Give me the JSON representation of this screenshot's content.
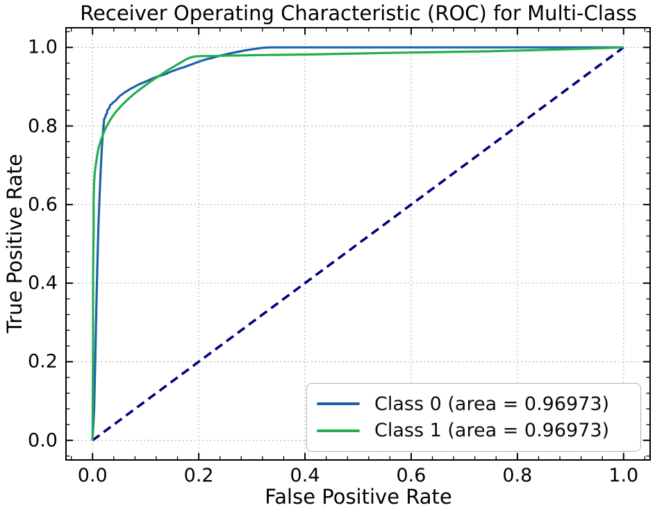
{
  "chart_data": {
    "type": "line",
    "title": "Receiver Operating Characteristic (ROC) for Multi-Class",
    "xlabel": "False Positive Rate",
    "ylabel": "True Positive Rate",
    "xlim": [
      -0.05,
      1.05
    ],
    "ylim": [
      -0.05,
      1.05
    ],
    "x_ticks": [
      0.0,
      0.2,
      0.4,
      0.6,
      0.8,
      1.0
    ],
    "y_ticks": [
      0.0,
      0.2,
      0.4,
      0.6,
      0.8,
      1.0
    ],
    "x_tick_labels": [
      "0.0",
      "0.2",
      "0.4",
      "0.6",
      "0.8",
      "1.0"
    ],
    "y_tick_labels": [
      "0.0",
      "0.2",
      "0.4",
      "0.6",
      "0.8",
      "1.0"
    ],
    "minor_tick_step": 0.04,
    "grid": true,
    "grid_style": "dotted",
    "legend_position": "lower right",
    "colors": {
      "class0": "#1b62ab",
      "class1": "#23ad4f",
      "chance": "#000080",
      "grid": "#b9b9b9",
      "spine": "#000000"
    },
    "series": [
      {
        "name": "Class 0 (area = 0.96973)",
        "auc": 0.96973,
        "color": "#1b62ab",
        "style": "solid",
        "points": [
          [
            0.0,
            0.0
          ],
          [
            0.003,
            0.08
          ],
          [
            0.005,
            0.2
          ],
          [
            0.007,
            0.33
          ],
          [
            0.009,
            0.44
          ],
          [
            0.011,
            0.54
          ],
          [
            0.013,
            0.615
          ],
          [
            0.015,
            0.675
          ],
          [
            0.017,
            0.73
          ],
          [
            0.019,
            0.775
          ],
          [
            0.021,
            0.805
          ],
          [
            0.022,
            0.818
          ],
          [
            0.024,
            0.822
          ],
          [
            0.025,
            0.828
          ],
          [
            0.027,
            0.832
          ],
          [
            0.028,
            0.84
          ],
          [
            0.03,
            0.843
          ],
          [
            0.032,
            0.847
          ],
          [
            0.033,
            0.853
          ],
          [
            0.036,
            0.856
          ],
          [
            0.039,
            0.86
          ],
          [
            0.043,
            0.864
          ],
          [
            0.047,
            0.87
          ],
          [
            0.051,
            0.876
          ],
          [
            0.055,
            0.88
          ],
          [
            0.06,
            0.885
          ],
          [
            0.066,
            0.89
          ],
          [
            0.072,
            0.895
          ],
          [
            0.079,
            0.9
          ],
          [
            0.086,
            0.905
          ],
          [
            0.093,
            0.909
          ],
          [
            0.1,
            0.913
          ],
          [
            0.108,
            0.918
          ],
          [
            0.115,
            0.922
          ],
          [
            0.123,
            0.926
          ],
          [
            0.131,
            0.929
          ],
          [
            0.139,
            0.933
          ],
          [
            0.147,
            0.938
          ],
          [
            0.155,
            0.942
          ],
          [
            0.163,
            0.946
          ],
          [
            0.171,
            0.949
          ],
          [
            0.179,
            0.953
          ],
          [
            0.187,
            0.957
          ],
          [
            0.195,
            0.961
          ],
          [
            0.205,
            0.966
          ],
          [
            0.215,
            0.97
          ],
          [
            0.225,
            0.973
          ],
          [
            0.235,
            0.977
          ],
          [
            0.247,
            0.981
          ],
          [
            0.26,
            0.985
          ],
          [
            0.275,
            0.989
          ],
          [
            0.29,
            0.993
          ],
          [
            0.305,
            0.996
          ],
          [
            0.32,
            0.999
          ],
          [
            0.335,
            1.0
          ],
          [
            1.0,
            1.0
          ]
        ]
      },
      {
        "name": "Class 1 (area = 0.96973)",
        "auc": 0.96973,
        "color": "#23ad4f",
        "style": "solid",
        "points": [
          [
            0.0,
            0.0
          ],
          [
            0.001,
            0.25
          ],
          [
            0.001,
            0.43
          ],
          [
            0.002,
            0.54
          ],
          [
            0.002,
            0.61
          ],
          [
            0.003,
            0.655
          ],
          [
            0.004,
            0.68
          ],
          [
            0.006,
            0.7
          ],
          [
            0.008,
            0.718
          ],
          [
            0.01,
            0.735
          ],
          [
            0.013,
            0.752
          ],
          [
            0.016,
            0.765
          ],
          [
            0.019,
            0.776
          ],
          [
            0.022,
            0.786
          ],
          [
            0.026,
            0.798
          ],
          [
            0.03,
            0.808
          ],
          [
            0.034,
            0.817
          ],
          [
            0.039,
            0.827
          ],
          [
            0.044,
            0.836
          ],
          [
            0.05,
            0.845
          ],
          [
            0.056,
            0.854
          ],
          [
            0.062,
            0.862
          ],
          [
            0.069,
            0.871
          ],
          [
            0.076,
            0.879
          ],
          [
            0.084,
            0.888
          ],
          [
            0.092,
            0.896
          ],
          [
            0.1,
            0.904
          ],
          [
            0.108,
            0.912
          ],
          [
            0.117,
            0.92
          ],
          [
            0.126,
            0.928
          ],
          [
            0.135,
            0.936
          ],
          [
            0.144,
            0.944
          ],
          [
            0.152,
            0.95
          ],
          [
            0.16,
            0.957
          ],
          [
            0.168,
            0.963
          ],
          [
            0.174,
            0.968
          ],
          [
            0.18,
            0.972
          ],
          [
            0.186,
            0.975
          ],
          [
            0.194,
            0.977
          ],
          [
            0.205,
            0.978
          ],
          [
            0.225,
            0.978
          ],
          [
            0.255,
            0.979
          ],
          [
            0.295,
            0.98
          ],
          [
            0.345,
            0.981
          ],
          [
            0.41,
            0.982
          ],
          [
            0.48,
            0.984
          ],
          [
            0.56,
            0.986
          ],
          [
            0.65,
            0.988
          ],
          [
            0.74,
            0.99
          ],
          [
            0.83,
            0.993
          ],
          [
            0.91,
            0.996
          ],
          [
            1.0,
            1.0
          ]
        ]
      },
      {
        "name": "chance-diagonal",
        "color": "#000080",
        "style": "dashed",
        "points": [
          [
            0.0,
            0.0
          ],
          [
            1.0,
            1.0
          ]
        ]
      }
    ]
  }
}
